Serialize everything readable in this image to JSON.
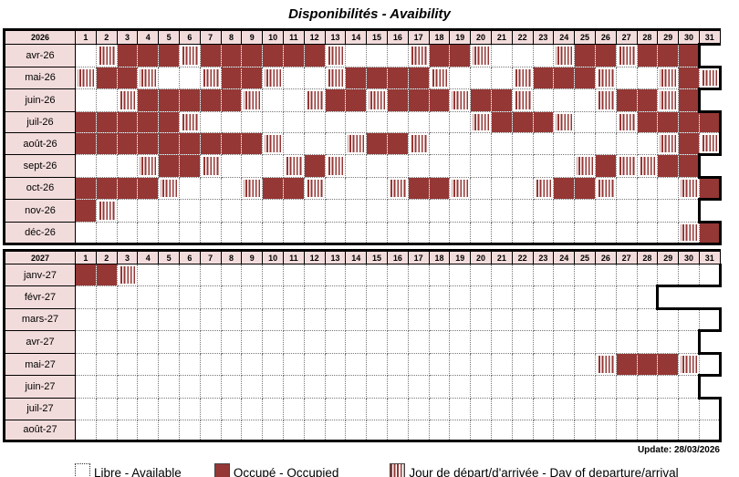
{
  "title": "Disponibilités - Avaibility",
  "update_text": "Update: 28/03/2026",
  "colors": {
    "occupied": "#953735",
    "header_bg": "#f2dcdb",
    "border": "#000000"
  },
  "cell_codes": {
    "W": "libre-available",
    "O": "occupe-occupied",
    "S": "jour-depart-arrivee",
    "X": "hors-mois"
  },
  "legend": [
    {
      "type": "W",
      "label": "Libre - Available"
    },
    {
      "type": "O",
      "label": "Occupé - Occupied"
    },
    {
      "type": "S",
      "label": "Jour de départ/d'arrivée - Day of departure/arrival"
    }
  ],
  "years": [
    {
      "year": "2026",
      "day_numbers": [
        "1",
        "2",
        "3",
        "4",
        "5",
        "6",
        "7",
        "8",
        "9",
        "10",
        "11",
        "12",
        "13",
        "14",
        "15",
        "16",
        "17",
        "18",
        "19",
        "20",
        "21",
        "22",
        "23",
        "24",
        "25",
        "26",
        "27",
        "28",
        "29",
        "30",
        "31"
      ],
      "months": [
        {
          "label": "avr-26",
          "cells": "WSOOOSOOOOOOSWWWSOOSWWWSOOSOOOX"
        },
        {
          "label": "mai-26",
          "cells": "SOOSWWSOOSWWSOOOOSWWWSOOOSWWSOS"
        },
        {
          "label": "juin-26",
          "cells": "WWSOOOOOSWWSOOSOOOSOOSWWWSOOSOX"
        },
        {
          "label": "juil-26",
          "cells": "OOOOOSWWWWWWWWWWWWWSOOOSWWSOOOO"
        },
        {
          "label": "août-26",
          "cells": "OOOOOOOOOSWWWSOOSWWWWWWWWWWWSOS"
        },
        {
          "label": "sept-26",
          "cells": "WWWSOOSWWWSOSWWWWWWWWWWWSOSSOOX"
        },
        {
          "label": "oct-26",
          "cells": "OOOOSWWWSOOSWWWSOOSWWWSOOSWWWSO"
        },
        {
          "label": "nov-26",
          "cells": "OSWWWWWWWWWWWWWWWWWWWWWWWWWWWWX"
        },
        {
          "label": "déc-26",
          "cells": "WWWWWWWWWWWWWWWWWWWWWWWWWWWWWSO"
        }
      ]
    },
    {
      "year": "2027",
      "day_numbers": [
        "1",
        "2",
        "3",
        "4",
        "5",
        "6",
        "7",
        "8",
        "9",
        "10",
        "11",
        "12",
        "13",
        "14",
        "15",
        "16",
        "17",
        "18",
        "19",
        "20",
        "21",
        "22",
        "23",
        "24",
        "25",
        "26",
        "27",
        "28",
        "29",
        "30",
        "31"
      ],
      "months": [
        {
          "label": "janv-27",
          "cells": "OOSWWWWWWWWWWWWWWWWWWWWWWWWWWWW"
        },
        {
          "label": "févr-27",
          "cells": "WWWWWWWWWWWWWWWWWWWWWWWWWWWWXXX"
        },
        {
          "label": "mars-27",
          "cells": "WWWWWWWWWWWWWWWWWWWWWWWWWWWWWWW"
        },
        {
          "label": "avr-27",
          "cells": "WWWWWWWWWWWWWWWWWWWWWWWWWWWWWWX"
        },
        {
          "label": "mai-27",
          "cells": "WWWWWWWWWWWWWWWWWWWWWWWWWSOOOSW"
        },
        {
          "label": "juin-27",
          "cells": "WWWWWWWWWWWWWWWWWWWWWWWWWWWWWWX"
        },
        {
          "label": "juil-27",
          "cells": "WWWWWWWWWWWWWWWWWWWWWWWWWWWWWWW"
        },
        {
          "label": "août-27",
          "cells": "WWWWWWWWWWWWWWWWWWWWWWWWWWWWWWW"
        }
      ]
    }
  ]
}
